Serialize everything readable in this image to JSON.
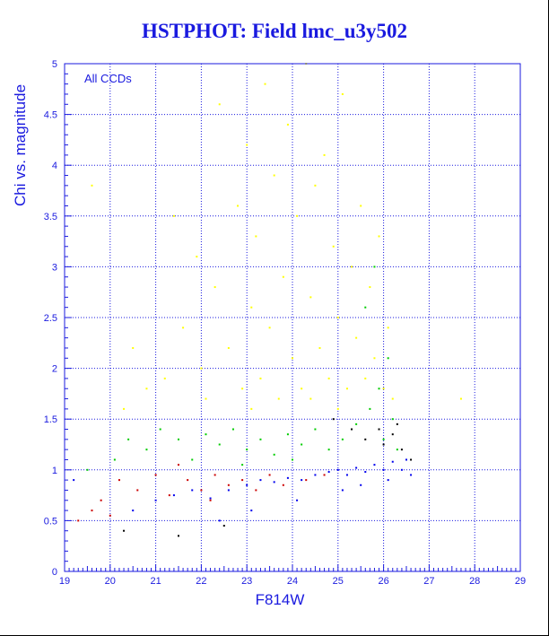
{
  "chart_data": {
    "type": "scatter",
    "title": "HSTPHOT: Field lmc_u3y502",
    "xlabel": "F814W",
    "ylabel": "Chi vs. magnitude",
    "annotation": "All CCDs",
    "xlim": [
      19,
      29
    ],
    "ylim": [
      0,
      5
    ],
    "x_ticks": [
      "19",
      "20",
      "21",
      "22",
      "23",
      "24",
      "25",
      "26",
      "27",
      "28",
      "29"
    ],
    "y_ticks": [
      "0",
      "0.5",
      "1",
      "1.5",
      "2",
      "2.5",
      "3",
      "3.5",
      "4",
      "4.5",
      "5"
    ],
    "grid": true,
    "colors": {
      "axis": "#1a1adf",
      "grid": "#1a1adf",
      "yellow": "#ffff00",
      "green": "#00cc00",
      "red": "#cc0000",
      "blue": "#0000ee",
      "black": "#000000"
    },
    "series": [
      {
        "color": "#ffff00",
        "points": [
          [
            21.2,
            1.9
          ],
          [
            21.6,
            2.4
          ],
          [
            21.9,
            3.1
          ],
          [
            22.1,
            1.7
          ],
          [
            22.3,
            2.8
          ],
          [
            22.4,
            4.6
          ],
          [
            22.6,
            2.2
          ],
          [
            22.8,
            3.6
          ],
          [
            22.9,
            1.8
          ],
          [
            23.0,
            4.2
          ],
          [
            23.1,
            2.6
          ],
          [
            23.2,
            3.3
          ],
          [
            23.3,
            1.9
          ],
          [
            23.4,
            4.8
          ],
          [
            23.5,
            2.4
          ],
          [
            23.6,
            3.9
          ],
          [
            23.7,
            1.7
          ],
          [
            23.8,
            2.9
          ],
          [
            23.9,
            4.4
          ],
          [
            24.0,
            2.1
          ],
          [
            24.1,
            3.5
          ],
          [
            24.2,
            1.8
          ],
          [
            24.3,
            5.0
          ],
          [
            24.4,
            2.7
          ],
          [
            24.5,
            3.8
          ],
          [
            24.6,
            2.2
          ],
          [
            24.7,
            4.1
          ],
          [
            24.8,
            1.9
          ],
          [
            24.9,
            3.2
          ],
          [
            25.0,
            2.5
          ],
          [
            25.1,
            4.7
          ],
          [
            25.2,
            1.8
          ],
          [
            25.3,
            3.0
          ],
          [
            25.4,
            2.3
          ],
          [
            25.5,
            3.6
          ],
          [
            25.6,
            1.9
          ],
          [
            25.7,
            2.8
          ],
          [
            25.8,
            2.1
          ],
          [
            25.9,
            3.3
          ],
          [
            26.0,
            1.8
          ],
          [
            26.1,
            2.4
          ],
          [
            26.2,
            1.7
          ],
          [
            20.8,
            1.8
          ],
          [
            20.5,
            2.2
          ],
          [
            21.4,
            3.5
          ],
          [
            22.0,
            2.0
          ],
          [
            23.1,
            1.6
          ],
          [
            24.4,
            1.7
          ],
          [
            25.0,
            1.6
          ],
          [
            19.6,
            3.8
          ],
          [
            20.3,
            1.6
          ],
          [
            27.7,
            1.7
          ]
        ]
      },
      {
        "color": "#00cc00",
        "points": [
          [
            20.4,
            1.3
          ],
          [
            20.8,
            1.2
          ],
          [
            21.1,
            1.4
          ],
          [
            21.5,
            1.3
          ],
          [
            21.8,
            1.1
          ],
          [
            22.1,
            1.35
          ],
          [
            22.4,
            1.25
          ],
          [
            22.7,
            1.4
          ],
          [
            23.0,
            1.2
          ],
          [
            23.3,
            1.3
          ],
          [
            23.6,
            1.15
          ],
          [
            23.9,
            1.35
          ],
          [
            24.2,
            1.25
          ],
          [
            24.5,
            1.4
          ],
          [
            24.8,
            1.2
          ],
          [
            25.1,
            1.3
          ],
          [
            25.4,
            1.45
          ],
          [
            25.7,
            1.6
          ],
          [
            25.9,
            1.8
          ],
          [
            26.1,
            2.1
          ],
          [
            26.2,
            1.5
          ],
          [
            25.6,
            2.6
          ],
          [
            25.8,
            3.0
          ],
          [
            26.0,
            1.3
          ],
          [
            26.3,
            1.2
          ],
          [
            26.5,
            1.1
          ],
          [
            19.5,
            1.0
          ],
          [
            20.1,
            1.1
          ],
          [
            22.9,
            1.05
          ],
          [
            24.0,
            1.1
          ]
        ]
      },
      {
        "color": "#cc0000",
        "points": [
          [
            19.3,
            0.5
          ],
          [
            19.8,
            0.7
          ],
          [
            20.2,
            0.9
          ],
          [
            20.6,
            0.8
          ],
          [
            21.0,
            0.95
          ],
          [
            21.3,
            0.75
          ],
          [
            21.7,
            0.9
          ],
          [
            22.0,
            0.8
          ],
          [
            22.3,
            0.95
          ],
          [
            22.6,
            0.85
          ],
          [
            22.9,
            0.9
          ],
          [
            23.2,
            0.8
          ],
          [
            23.5,
            0.95
          ],
          [
            19.6,
            0.6
          ],
          [
            20.0,
            0.55
          ],
          [
            21.5,
            1.05
          ],
          [
            22.2,
            0.7
          ],
          [
            23.8,
            0.85
          ],
          [
            24.3,
            0.9
          ],
          [
            24.7,
            0.95
          ]
        ]
      },
      {
        "color": "#0000ee",
        "points": [
          [
            21.0,
            0.7
          ],
          [
            21.4,
            0.75
          ],
          [
            21.8,
            0.8
          ],
          [
            22.2,
            0.72
          ],
          [
            22.6,
            0.8
          ],
          [
            23.0,
            0.85
          ],
          [
            23.3,
            0.9
          ],
          [
            23.6,
            0.88
          ],
          [
            23.9,
            0.92
          ],
          [
            24.2,
            0.9
          ],
          [
            24.5,
            0.95
          ],
          [
            24.8,
            0.98
          ],
          [
            25.0,
            1.0
          ],
          [
            25.2,
            0.95
          ],
          [
            25.4,
            1.02
          ],
          [
            25.6,
            0.98
          ],
          [
            25.8,
            1.05
          ],
          [
            26.0,
            1.0
          ],
          [
            26.2,
            1.08
          ],
          [
            26.4,
            1.0
          ],
          [
            26.6,
            0.95
          ],
          [
            19.2,
            0.9
          ],
          [
            20.5,
            0.6
          ],
          [
            22.4,
            0.5
          ],
          [
            23.1,
            0.6
          ],
          [
            24.1,
            0.7
          ],
          [
            25.1,
            0.8
          ],
          [
            25.5,
            0.85
          ],
          [
            26.1,
            0.9
          ],
          [
            26.5,
            1.1
          ]
        ]
      },
      {
        "color": "#000000",
        "points": [
          [
            25.6,
            1.3
          ],
          [
            25.9,
            1.4
          ],
          [
            26.2,
            1.35
          ],
          [
            26.4,
            1.2
          ],
          [
            26.6,
            1.1
          ],
          [
            26.3,
            1.45
          ],
          [
            26.0,
            1.25
          ],
          [
            24.9,
            1.5
          ],
          [
            25.3,
            1.4
          ],
          [
            20.3,
            0.4
          ],
          [
            21.5,
            0.35
          ],
          [
            22.5,
            0.45
          ]
        ]
      }
    ]
  }
}
